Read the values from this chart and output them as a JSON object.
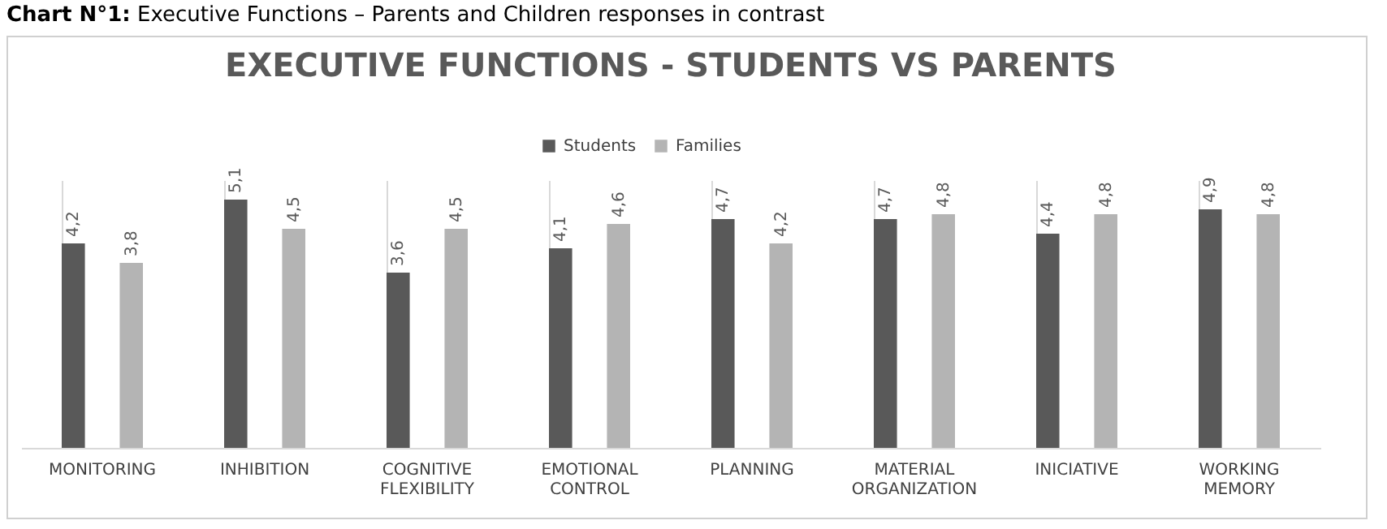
{
  "chart_data": {
    "type": "bar",
    "title": "EXECUTIVE FUNCTIONS - STUDENTS VS PARENTS",
    "annotations": [
      "Chart N°1:",
      "Executive Functions – Parents and Children responses in contrast"
    ],
    "categories": [
      "MONITORING",
      "INHIBITION",
      "COGNITIVE FLEXIBILITY",
      "EMOTIONAL CONTROL",
      "PLANNING",
      "MATERIAL ORGANIZATION",
      "INICIATIVE",
      "WORKING MEMORY"
    ],
    "series": [
      {
        "name": "Students",
        "color": "#595959",
        "values": [
          4.2,
          5.1,
          3.6,
          4.1,
          4.7,
          4.7,
          4.4,
          4.9
        ],
        "value_labels": [
          "4,2",
          "5,1",
          "3,6",
          "4,1",
          "4,7",
          "4,7",
          "4,4",
          "4,9"
        ]
      },
      {
        "name": "Families",
        "color": "#b4b4b4",
        "values": [
          3.8,
          4.5,
          4.5,
          4.6,
          4.2,
          4.8,
          4.8,
          4.8
        ],
        "value_labels": [
          "3,8",
          "4,5",
          "4,5",
          "4,6",
          "4,2",
          "4,8",
          "4,8",
          "4,8"
        ]
      }
    ],
    "grid": "x",
    "legend": "top"
  }
}
